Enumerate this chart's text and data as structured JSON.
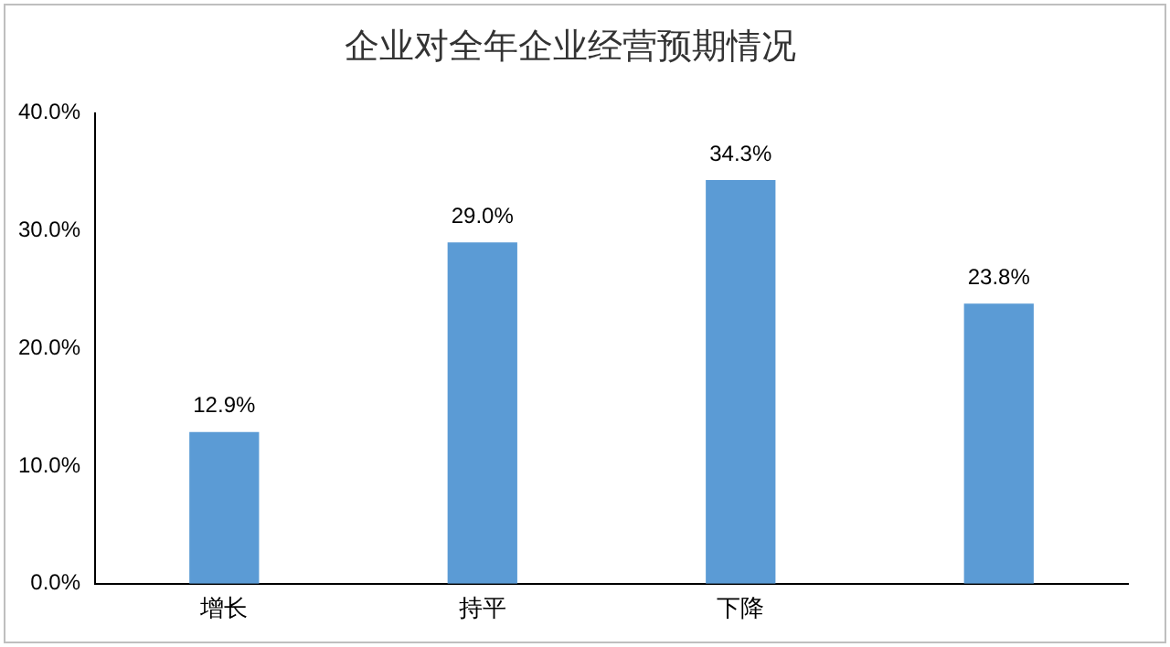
{
  "chart_data": {
    "type": "bar",
    "title": "企业对全年企业经营预期情况",
    "categories": [
      "增长",
      "持平",
      "下降",
      null
    ],
    "values": [
      12.9,
      29.0,
      34.3,
      23.8
    ],
    "value_labels": [
      "12.9%",
      "29.0%",
      "34.3%",
      "23.8%"
    ],
    "color": "#5b9bd5",
    "ylim": [
      0,
      40
    ],
    "yticks": [
      {
        "value": 0,
        "label": "0.0%"
      },
      {
        "value": 10,
        "label": "10.0%"
      },
      {
        "value": 20,
        "label": "20.0%"
      },
      {
        "value": 30,
        "label": "30.0%"
      },
      {
        "value": 40,
        "label": "40.0%"
      }
    ],
    "grid": false,
    "legend": false
  }
}
